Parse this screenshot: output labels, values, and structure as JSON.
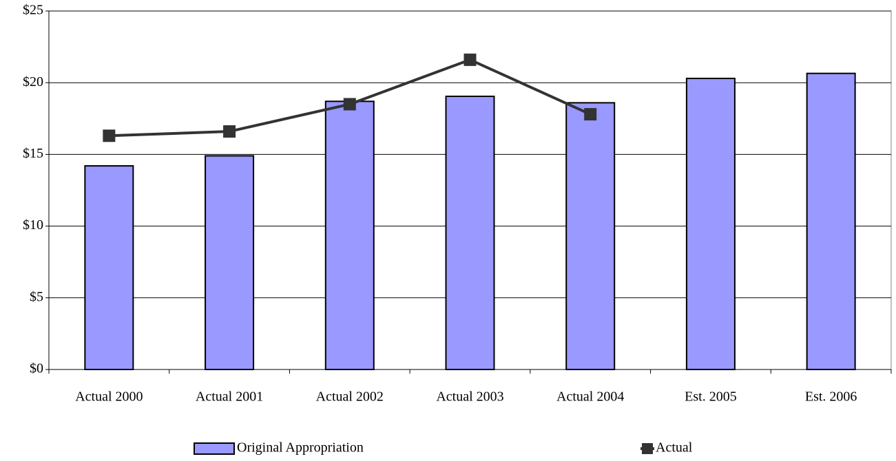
{
  "chart_data": {
    "type": "bar_line",
    "categories": [
      "Actual 2000",
      "Actual 2001",
      "Actual 2002",
      "Actual 2003",
      "Actual 2004",
      "Est. 2005",
      "Est. 2006"
    ],
    "series": [
      {
        "name": "Original Appropriation",
        "type": "bar",
        "color": "#9999ff",
        "values": [
          14.2,
          14.9,
          18.7,
          19.05,
          18.6,
          20.3,
          20.65
        ]
      },
      {
        "name": "Actual",
        "type": "line",
        "color": "#333333",
        "values": [
          16.3,
          16.6,
          18.5,
          21.6,
          17.8,
          null,
          null
        ]
      }
    ],
    "ylim": [
      0,
      25
    ],
    "yticks": [
      {
        "value": 0,
        "label": "$0"
      },
      {
        "value": 5,
        "label": "$5"
      },
      {
        "value": 10,
        "label": "$10"
      },
      {
        "value": 15,
        "label": "$15"
      },
      {
        "value": 20,
        "label": "$20"
      },
      {
        "value": 25,
        "label": "$25"
      }
    ],
    "grid": true,
    "legend": "bottom"
  }
}
